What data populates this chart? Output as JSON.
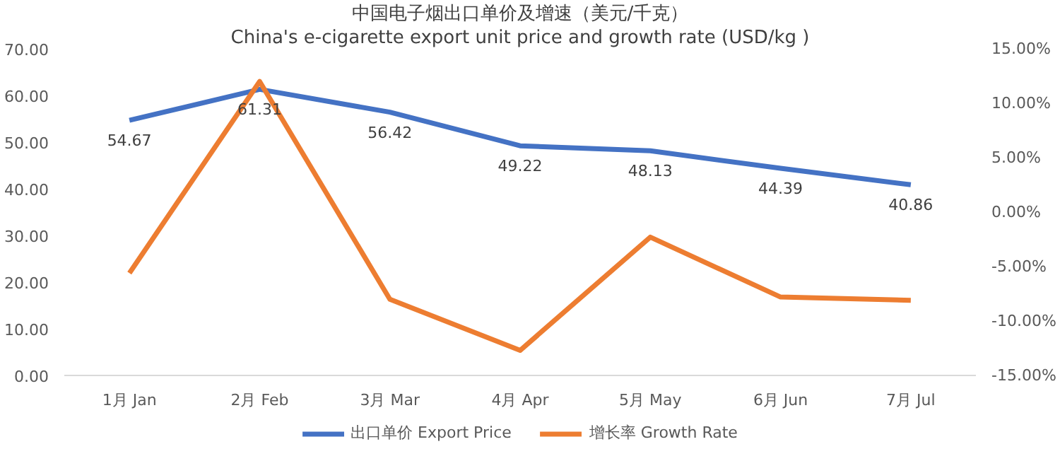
{
  "chart_data": {
    "type": "line",
    "title": "中国电子烟出口单价及增速（美元/千克）",
    "subtitle": "China's e-cigarette export unit price and growth rate (USD/kg )",
    "categories": [
      "1月 Jan",
      "2月 Feb",
      "3月 Mar",
      "4月 Apr",
      "5月 May",
      "6月 Jun",
      "7月 Jul"
    ],
    "series": [
      {
        "name": "出口单价 Export Price",
        "color": "#4472c4",
        "values": [
          54.67,
          61.31,
          56.42,
          49.22,
          48.13,
          44.39,
          40.86
        ],
        "value_labels": [
          "54.67",
          "61.31",
          "56.42",
          "49.22",
          "48.13",
          "44.39",
          "40.86"
        ]
      },
      {
        "name": "增长率 Growth Rate",
        "color": "#ed7d31",
        "axis": "y2",
        "values": [
          -5.6,
          12.0,
          -8.0,
          -12.7,
          -2.3,
          -7.8,
          -8.1
        ]
      }
    ],
    "ylim": [
      0,
      70
    ],
    "yticks": [
      {
        "value": 0,
        "label": "0.00"
      },
      {
        "value": 10,
        "label": "10.00"
      },
      {
        "value": 20,
        "label": "20.00"
      },
      {
        "value": 30,
        "label": "30.00"
      },
      {
        "value": 40,
        "label": "40.00"
      },
      {
        "value": 50,
        "label": "50.00"
      },
      {
        "value": 60,
        "label": "60.00"
      },
      {
        "value": 70,
        "label": "70.00"
      }
    ],
    "y2lim": [
      -15,
      15
    ],
    "y2ticks": [
      {
        "value": -15,
        "label": "-15.00%"
      },
      {
        "value": -10,
        "label": "-10.00%"
      },
      {
        "value": -5,
        "label": "-5.00%"
      },
      {
        "value": 0,
        "label": "0.00%"
      },
      {
        "value": 5,
        "label": "5.00%"
      },
      {
        "value": 10,
        "label": "10.00%"
      },
      {
        "value": 15,
        "label": "15.00%"
      }
    ],
    "grid": false,
    "legend": "bottom",
    "marker": "none",
    "line_style": "solid"
  }
}
